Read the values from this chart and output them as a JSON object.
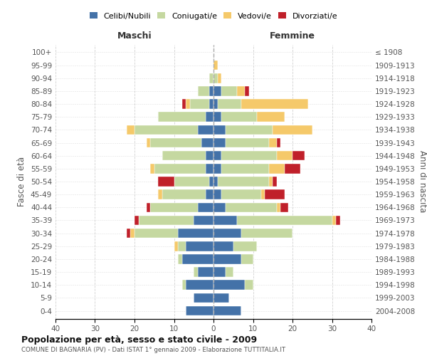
{
  "age_groups": [
    "100+",
    "95-99",
    "90-94",
    "85-89",
    "80-84",
    "75-79",
    "70-74",
    "65-69",
    "60-64",
    "55-59",
    "50-54",
    "45-49",
    "40-44",
    "35-39",
    "30-34",
    "25-29",
    "20-24",
    "15-19",
    "10-14",
    "5-9",
    "0-4"
  ],
  "birth_years": [
    "≤ 1908",
    "1909-1913",
    "1914-1918",
    "1919-1923",
    "1924-1928",
    "1929-1933",
    "1934-1938",
    "1939-1943",
    "1944-1948",
    "1949-1953",
    "1954-1958",
    "1959-1963",
    "1964-1968",
    "1969-1973",
    "1974-1978",
    "1979-1983",
    "1984-1988",
    "1989-1993",
    "1994-1998",
    "1999-2003",
    "2004-2008"
  ],
  "colors": {
    "celibe": "#4472a8",
    "coniugato": "#c5d8a0",
    "vedovo": "#f5c96a",
    "divorziato": "#c0202a"
  },
  "maschi": {
    "celibe": [
      0,
      0,
      0,
      1,
      1,
      2,
      4,
      3,
      2,
      2,
      1,
      2,
      4,
      5,
      9,
      7,
      8,
      4,
      7,
      5,
      7
    ],
    "coniugato": [
      0,
      0,
      1,
      3,
      5,
      12,
      16,
      13,
      11,
      13,
      9,
      11,
      12,
      14,
      11,
      2,
      1,
      1,
      1,
      0,
      0
    ],
    "vedovo": [
      0,
      0,
      0,
      0,
      1,
      0,
      2,
      1,
      0,
      1,
      0,
      1,
      0,
      0,
      1,
      1,
      0,
      0,
      0,
      0,
      0
    ],
    "divorziato": [
      0,
      0,
      0,
      0,
      1,
      0,
      0,
      0,
      0,
      0,
      4,
      0,
      1,
      1,
      1,
      0,
      0,
      0,
      0,
      0,
      0
    ]
  },
  "femmine": {
    "nubile": [
      0,
      0,
      0,
      2,
      1,
      2,
      3,
      3,
      2,
      2,
      1,
      2,
      3,
      6,
      7,
      5,
      7,
      3,
      8,
      4,
      7
    ],
    "coniugata": [
      0,
      0,
      1,
      4,
      6,
      9,
      12,
      11,
      14,
      12,
      13,
      10,
      13,
      24,
      13,
      6,
      3,
      2,
      2,
      0,
      0
    ],
    "vedova": [
      0,
      1,
      1,
      2,
      17,
      7,
      10,
      2,
      4,
      4,
      1,
      1,
      1,
      1,
      0,
      0,
      0,
      0,
      0,
      0,
      0
    ],
    "divorziata": [
      0,
      0,
      0,
      1,
      0,
      0,
      0,
      1,
      3,
      4,
      1,
      5,
      2,
      1,
      0,
      0,
      0,
      0,
      0,
      0,
      0
    ]
  },
  "xlim": [
    -40,
    40
  ],
  "title": "Popolazione per età, sesso e stato civile - 2009",
  "subtitle": "COMUNE DI BAGNARIA (PV) - Dati ISTAT 1° gennaio 2009 - Elaborazione TUTTITALIA.IT",
  "xlabel_left": "Maschi",
  "xlabel_right": "Femmine",
  "ylabel_left": "Fasce di età",
  "ylabel_right": "Anni di nascita",
  "legend_labels": [
    "Celibi/Nubili",
    "Coniugati/e",
    "Vedovi/e",
    "Divorziati/e"
  ],
  "bg_color": "#ffffff",
  "grid_color": "#cccccc"
}
